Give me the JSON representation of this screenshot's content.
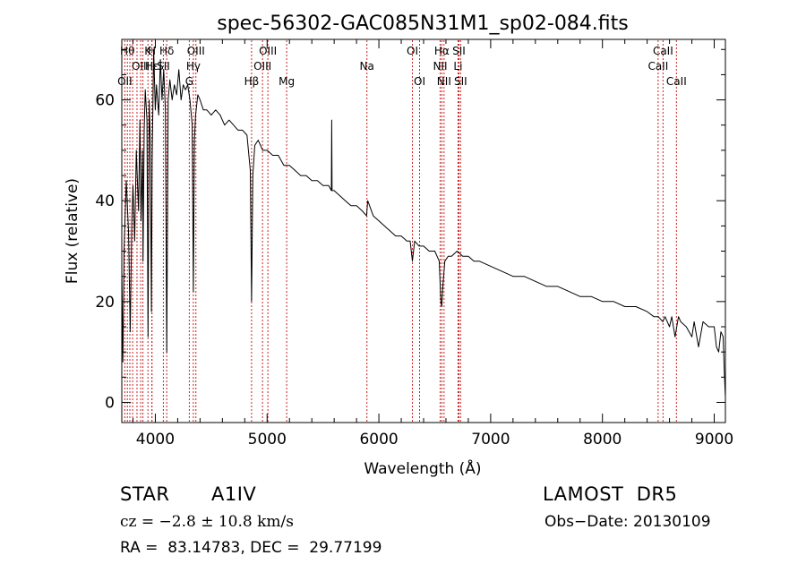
{
  "chart_data": {
    "type": "line",
    "title": "spec-56302-GAC085N31M1_sp02-084.fits",
    "xlabel": "Wavelength (Å)",
    "ylabel": "Flux (relative)",
    "xlim": [
      3700,
      9100
    ],
    "ylim": [
      -4,
      72
    ],
    "xticks": [
      4000,
      5000,
      6000,
      7000,
      8000,
      9000
    ],
    "yticks": [
      0,
      20,
      40,
      60
    ],
    "grid": false,
    "series": [
      {
        "values": [
          [
            3700,
            26
          ],
          [
            3710,
            8
          ],
          [
            3720,
            30
          ],
          [
            3740,
            44
          ],
          [
            3760,
            34
          ],
          [
            3775,
            14
          ],
          [
            3790,
            36
          ],
          [
            3800,
            43
          ],
          [
            3815,
            32
          ],
          [
            3830,
            50
          ],
          [
            3850,
            38
          ],
          [
            3862,
            56
          ],
          [
            3872,
            36
          ],
          [
            3885,
            50
          ],
          [
            3890,
            28
          ],
          [
            3900,
            54
          ],
          [
            3910,
            62
          ],
          [
            3925,
            56
          ],
          [
            3935,
            13
          ],
          [
            3945,
            60
          ],
          [
            3955,
            52
          ],
          [
            3965,
            18
          ],
          [
            3972,
            48
          ],
          [
            3985,
            70
          ],
          [
            4000,
            58
          ],
          [
            4010,
            63
          ],
          [
            4030,
            57
          ],
          [
            4045,
            68
          ],
          [
            4060,
            60
          ],
          [
            4075,
            66
          ],
          [
            4090,
            58
          ],
          [
            4102,
            10
          ],
          [
            4115,
            60
          ],
          [
            4130,
            64
          ],
          [
            4150,
            60
          ],
          [
            4170,
            63
          ],
          [
            4190,
            61
          ],
          [
            4210,
            66
          ],
          [
            4230,
            60
          ],
          [
            4250,
            63
          ],
          [
            4270,
            62
          ],
          [
            4290,
            63
          ],
          [
            4310,
            60
          ],
          [
            4330,
            55
          ],
          [
            4340,
            22
          ],
          [
            4350,
            52
          ],
          [
            4360,
            57
          ],
          [
            4380,
            61
          ],
          [
            4400,
            60
          ],
          [
            4430,
            58
          ],
          [
            4460,
            58
          ],
          [
            4500,
            57
          ],
          [
            4540,
            58
          ],
          [
            4580,
            57
          ],
          [
            4620,
            55
          ],
          [
            4660,
            56
          ],
          [
            4700,
            55
          ],
          [
            4740,
            54
          ],
          [
            4780,
            54
          ],
          [
            4820,
            53
          ],
          [
            4850,
            46
          ],
          [
            4861,
            20
          ],
          [
            4872,
            45
          ],
          [
            4890,
            51
          ],
          [
            4920,
            52
          ],
          [
            4960,
            50
          ],
          [
            5000,
            50
          ],
          [
            5050,
            49
          ],
          [
            5100,
            49
          ],
          [
            5150,
            47
          ],
          [
            5200,
            47
          ],
          [
            5250,
            46
          ],
          [
            5300,
            45
          ],
          [
            5350,
            45
          ],
          [
            5400,
            44
          ],
          [
            5450,
            44
          ],
          [
            5500,
            43
          ],
          [
            5550,
            43
          ],
          [
            5575,
            42
          ],
          [
            5578,
            56
          ],
          [
            5581,
            42
          ],
          [
            5600,
            42
          ],
          [
            5650,
            41
          ],
          [
            5700,
            40
          ],
          [
            5750,
            39
          ],
          [
            5800,
            39
          ],
          [
            5850,
            38
          ],
          [
            5890,
            37
          ],
          [
            5900,
            40
          ],
          [
            5950,
            37
          ],
          [
            6000,
            36
          ],
          [
            6050,
            35
          ],
          [
            6100,
            34
          ],
          [
            6150,
            33
          ],
          [
            6200,
            33
          ],
          [
            6250,
            32
          ],
          [
            6280,
            32
          ],
          [
            6300,
            28
          ],
          [
            6320,
            32
          ],
          [
            6360,
            31
          ],
          [
            6400,
            31
          ],
          [
            6450,
            30
          ],
          [
            6500,
            30
          ],
          [
            6540,
            28
          ],
          [
            6555,
            20
          ],
          [
            6563,
            19
          ],
          [
            6572,
            23
          ],
          [
            6590,
            28
          ],
          [
            6620,
            29
          ],
          [
            6650,
            29
          ],
          [
            6700,
            30
          ],
          [
            6750,
            29
          ],
          [
            6800,
            29
          ],
          [
            6850,
            28
          ],
          [
            6900,
            28
          ],
          [
            7000,
            27
          ],
          [
            7100,
            26
          ],
          [
            7200,
            25
          ],
          [
            7300,
            25
          ],
          [
            7400,
            24
          ],
          [
            7500,
            23
          ],
          [
            7600,
            23
          ],
          [
            7700,
            22
          ],
          [
            7800,
            21
          ],
          [
            7900,
            21
          ],
          [
            8000,
            20
          ],
          [
            8100,
            20
          ],
          [
            8200,
            19
          ],
          [
            8300,
            19
          ],
          [
            8400,
            18
          ],
          [
            8460,
            17
          ],
          [
            8500,
            17
          ],
          [
            8540,
            16
          ],
          [
            8560,
            17
          ],
          [
            8600,
            15
          ],
          [
            8620,
            17
          ],
          [
            8650,
            13
          ],
          [
            8680,
            17
          ],
          [
            8700,
            16
          ],
          [
            8750,
            15
          ],
          [
            8800,
            13
          ],
          [
            8820,
            16
          ],
          [
            8860,
            11
          ],
          [
            8900,
            16
          ],
          [
            8950,
            15
          ],
          [
            9000,
            15
          ],
          [
            9020,
            11
          ],
          [
            9040,
            10
          ],
          [
            9060,
            14
          ],
          [
            9080,
            13
          ],
          [
            9090,
            6
          ],
          [
            9100,
            1
          ]
        ]
      }
    ],
    "lines": [
      {
        "x": 3727,
        "label": "OII",
        "row": 2
      },
      {
        "x": 3750,
        "label": "Hθ",
        "row": 0
      },
      {
        "x": 3772,
        "label": "",
        "row": 0
      },
      {
        "x": 3797,
        "label": "",
        "row": 0
      },
      {
        "x": 3836,
        "label": "",
        "row": 0
      },
      {
        "x": 3869,
        "label": "OIII",
        "row": 1
      },
      {
        "x": 3889,
        "label": "",
        "row": 0
      },
      {
        "x": 3934,
        "label": "K",
        "row": 0
      },
      {
        "x": 3969,
        "label": "H",
        "row": 0
      },
      {
        "x": 3970,
        "label": "Hε",
        "row": 1
      },
      {
        "x": 4072,
        "label": "SII",
        "row": 1
      },
      {
        "x": 4102,
        "label": "Hδ",
        "row": 0
      },
      {
        "x": 4304,
        "label": "G",
        "row": 2
      },
      {
        "x": 4340,
        "label": "Hγ",
        "row": 1
      },
      {
        "x": 4363,
        "label": "OIII",
        "row": 0
      },
      {
        "x": 4861,
        "label": "Hβ",
        "row": 2
      },
      {
        "x": 4959,
        "label": "OIII",
        "row": 1
      },
      {
        "x": 5007,
        "label": "OIII",
        "row": 0
      },
      {
        "x": 5175,
        "label": "Mg",
        "row": 2
      },
      {
        "x": 5893,
        "label": "Na",
        "row": 1
      },
      {
        "x": 6300,
        "label": "OI",
        "row": 0
      },
      {
        "x": 6364,
        "label": "OI",
        "row": 2
      },
      {
        "x": 6548,
        "label": "NII",
        "row": 1
      },
      {
        "x": 6563,
        "label": "Hα",
        "row": 0
      },
      {
        "x": 6583,
        "label": "NII",
        "row": 2
      },
      {
        "x": 6708,
        "label": "Li",
        "row": 1
      },
      {
        "x": 6716,
        "label": "SII",
        "row": 0
      },
      {
        "x": 6731,
        "label": "SII",
        "row": 2
      },
      {
        "x": 8498,
        "label": "CaII",
        "row": 1
      },
      {
        "x": 8542,
        "label": "CaII",
        "row": 0
      },
      {
        "x": 8662,
        "label": "CaII",
        "row": 2
      }
    ]
  },
  "info": {
    "class": "STAR",
    "subclass": "A1IV",
    "survey": "LAMOST  DR5",
    "cz": "cz = −2.8 ± 10.8 km/s",
    "obs_date": "Obs−Date: 20130109",
    "coords": "RA =  83.14783, DEC =  29.77199"
  },
  "colors": {
    "line_markers": "#cc2222",
    "spectrum": "#000000"
  }
}
